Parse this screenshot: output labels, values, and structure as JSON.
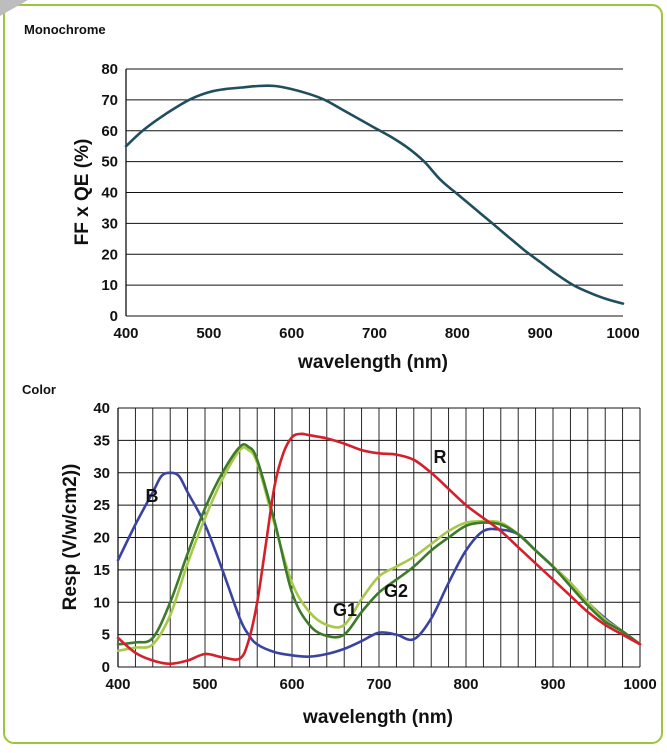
{
  "chart_data": [
    {
      "type": "line",
      "title": "Monochrome",
      "xlabel": "wavelength (nm)",
      "ylabel": "FF x QE (%)",
      "xlim": [
        400,
        1000
      ],
      "ylim": [
        0,
        80
      ],
      "xticks": [
        400,
        500,
        600,
        700,
        800,
        900,
        1000
      ],
      "yticks": [
        0,
        10,
        20,
        30,
        40,
        50,
        60,
        70,
        80
      ],
      "grid": "horizontal",
      "series": [
        {
          "color": "#1f4e5f",
          "x": [
            400,
            420,
            440,
            460,
            480,
            500,
            520,
            540,
            560,
            580,
            600,
            620,
            640,
            660,
            680,
            700,
            720,
            740,
            760,
            780,
            800,
            820,
            840,
            860,
            880,
            900,
            920,
            940,
            960,
            980,
            1000
          ],
          "y": [
            55,
            60,
            64,
            67.5,
            70.5,
            72.5,
            73.5,
            74,
            74.5,
            74.5,
            73.5,
            72,
            70,
            67,
            64,
            61,
            58,
            54.5,
            50,
            44,
            39.5,
            35,
            30.5,
            26,
            21.5,
            17.5,
            13.5,
            10,
            7.5,
            5.5,
            4
          ]
        }
      ]
    },
    {
      "type": "line",
      "title": "Color",
      "xlabel": "wavelength (nm)",
      "ylabel": "Resp (V/w/cm2))",
      "xlim": [
        400,
        1000
      ],
      "ylim": [
        0,
        40
      ],
      "xticks": [
        400,
        500,
        600,
        700,
        800,
        900,
        1000
      ],
      "yticks": [
        0,
        5,
        10,
        15,
        20,
        25,
        30,
        35,
        40
      ],
      "grid": "both",
      "series": [
        {
          "name": "B",
          "color": "#3a44a0",
          "x": [
            400,
            420,
            440,
            450,
            460,
            470,
            480,
            500,
            520,
            540,
            550,
            560,
            580,
            600,
            620,
            640,
            660,
            680,
            700,
            720,
            740,
            760,
            780,
            800,
            820,
            840,
            860,
            880,
            900,
            920,
            940,
            960,
            980,
            1000
          ],
          "y": [
            16.5,
            22,
            27,
            29.5,
            30,
            29.5,
            27,
            22,
            15,
            7.5,
            5,
            3.5,
            2.3,
            1.8,
            1.6,
            2,
            2.8,
            4,
            5.3,
            5,
            4.3,
            7.5,
            13,
            18,
            21,
            21.2,
            20.5,
            18,
            15.5,
            13,
            10,
            7.5,
            5.5,
            3.5
          ]
        },
        {
          "name": "G1",
          "color": "#a8c84a",
          "x": [
            400,
            420,
            440,
            460,
            480,
            500,
            520,
            540,
            550,
            560,
            580,
            600,
            620,
            640,
            660,
            680,
            700,
            720,
            740,
            760,
            780,
            800,
            820,
            840,
            860,
            880,
            900,
            920,
            940,
            960,
            980,
            1000
          ],
          "y": [
            2.5,
            3,
            3.5,
            8,
            16,
            23,
            29,
            33.5,
            33.5,
            31.5,
            22,
            13,
            8.5,
            6.5,
            6.5,
            10.5,
            14,
            15.5,
            17,
            19,
            21,
            22.3,
            22.5,
            22.3,
            20.5,
            18,
            15.5,
            13,
            10,
            7.3,
            5.5,
            3.5
          ]
        },
        {
          "name": "G2",
          "color": "#3d7a2a",
          "x": [
            400,
            420,
            440,
            460,
            480,
            500,
            520,
            540,
            550,
            560,
            580,
            600,
            620,
            640,
            660,
            680,
            700,
            720,
            740,
            760,
            780,
            800,
            820,
            840,
            860,
            880,
            900,
            920,
            940,
            960,
            980,
            1000
          ],
          "y": [
            3.5,
            3.8,
            4.5,
            10,
            17.5,
            24.5,
            30,
            34,
            34,
            32,
            22.5,
            11.5,
            6.5,
            4.8,
            5,
            8.5,
            11.5,
            13.5,
            15.5,
            18,
            20,
            21.8,
            22.3,
            22,
            20.5,
            18,
            15.5,
            12.5,
            9.5,
            7,
            5.5,
            3.5
          ]
        },
        {
          "name": "R",
          "color": "#d4202a",
          "x": [
            400,
            420,
            440,
            460,
            480,
            500,
            520,
            540,
            550,
            560,
            570,
            580,
            590,
            600,
            610,
            620,
            640,
            660,
            680,
            700,
            720,
            740,
            760,
            780,
            800,
            820,
            840,
            860,
            880,
            900,
            920,
            940,
            960,
            980,
            1000
          ],
          "y": [
            4.5,
            2.2,
            1,
            0.5,
            1,
            2,
            1.5,
            1.3,
            4,
            10,
            19,
            28,
            33,
            35.5,
            36,
            35.8,
            35.3,
            34.5,
            33.5,
            33,
            32.8,
            32,
            30,
            27.5,
            25,
            23,
            21,
            18.5,
            16,
            13.5,
            11,
            8.5,
            6.5,
            5,
            3.5
          ]
        }
      ]
    }
  ]
}
